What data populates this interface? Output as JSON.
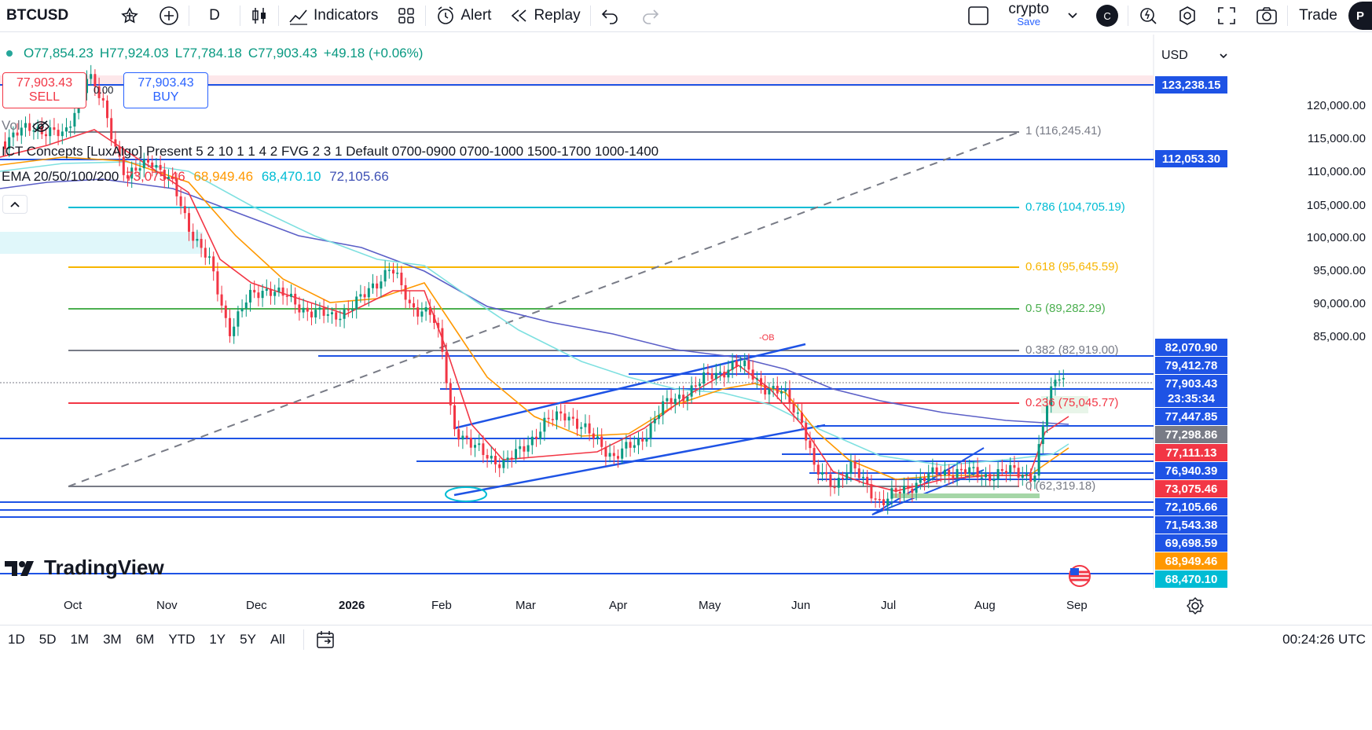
{
  "topbar": {
    "symbol": "BTCUSD",
    "interval": "D",
    "indicators_label": "Indicators",
    "alert_label": "Alert",
    "replay_label": "Replay",
    "layout_name": "crypto",
    "layout_save": "Save",
    "avatar_letter": "C",
    "trade_label": "Trade",
    "profile_letter": "P"
  },
  "ohlc": {
    "open": "O77,854.23",
    "high": "H77,924.03",
    "low": "L77,784.18",
    "close": "C77,903.43",
    "change": "+49.18 (+0.06%)"
  },
  "order": {
    "sell_price": "77,903.43",
    "sell_label": "SELL",
    "buy_price": "77,903.43",
    "buy_label": "BUY",
    "spread": "0.00"
  },
  "legend": {
    "vol": "Vol",
    "ict": "ICT Concepts [LuxAlgo] Present 5 2 10 1 1 4 2 FVG 2 3 1 Default 0700-0900 0700-1000 1500-1700 1000-1400",
    "ema_name": "EMA 20/50/100/200",
    "ema_values": [
      "73,075.46",
      "68,949.46",
      "68,470.10",
      "72,105.66"
    ]
  },
  "currency": "USD",
  "price_axis": [
    "120,000.00",
    "115,000.00",
    "110,000.00",
    "105,000.00",
    "100,000.00",
    "95,000.00",
    "90,000.00",
    "85,000.00"
  ],
  "price_tags": [
    {
      "label": "123,238.15",
      "color": "#1e53e5"
    },
    {
      "label": "112,053.30",
      "color": "#1e53e5"
    },
    {
      "label": "82,070.90",
      "color": "#1e53e5"
    },
    {
      "label": "79,412.78",
      "color": "#1e53e5"
    },
    {
      "label": "77,903.43",
      "color": "#1e53e5"
    },
    {
      "label": "23:35:34",
      "color": "#1e53e5"
    },
    {
      "label": "77,447.85",
      "color": "#1e53e5"
    },
    {
      "label": "77,298.86",
      "color": "#787b86"
    },
    {
      "label": "77,111.13",
      "color": "#f23645"
    },
    {
      "label": "76,940.39",
      "color": "#1e53e5"
    },
    {
      "label": "73,075.46",
      "color": "#f23645"
    },
    {
      "label": "72,105.66",
      "color": "#1e53e5"
    },
    {
      "label": "71,543.38",
      "color": "#1e53e5"
    },
    {
      "label": "69,698.59",
      "color": "#1e53e5"
    },
    {
      "label": "68,949.46",
      "color": "#ff9800"
    },
    {
      "label": "68,470.10",
      "color": "#00bcd4"
    }
  ],
  "fib_levels": [
    {
      "label": "1 (116,245.41)",
      "color": "#787b86"
    },
    {
      "label": "0.786 (104,705.19)",
      "color": "#00bcd4"
    },
    {
      "label": "0.618 (95,645.59)",
      "color": "#f7b500"
    },
    {
      "label": "0.5 (89,282.29)",
      "color": "#4caf50"
    },
    {
      "label": "0.382 (82,919.00)",
      "color": "#787b86"
    },
    {
      "label": "0.236 (75,045.77)",
      "color": "#f23645"
    },
    {
      "label": "0 (62,319.18)",
      "color": "#787b86"
    }
  ],
  "annotations": {
    "ob": "-OB"
  },
  "time_axis": [
    "Oct",
    "Nov",
    "Dec",
    "2026",
    "Feb",
    "Mar",
    "Apr",
    "May",
    "Jun",
    "Jul",
    "Aug",
    "Sep"
  ],
  "bottombar": {
    "timeframes": [
      "1D",
      "5D",
      "1M",
      "3M",
      "6M",
      "YTD",
      "1Y",
      "5Y",
      "All"
    ],
    "clock": "00:24:26 UTC"
  },
  "brand": "TradingView",
  "colors": {
    "up": "#089981",
    "down": "#f23645",
    "blue": "#1e53e5",
    "ema20": "#f23645",
    "ema50": "#ff9800",
    "ema100": "#7ee0e0",
    "ema200": "#5b5fc7"
  }
}
